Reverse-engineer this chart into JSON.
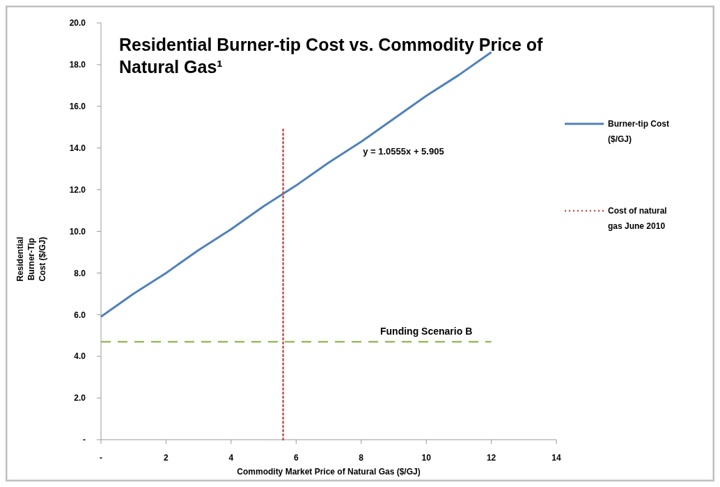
{
  "chart_data": {
    "type": "line",
    "title": "Residential Burner-tip Cost vs. Commodity Price of Natural Gas¹",
    "xlabel": "Commodity Market Price of Natural Gas ($/GJ)",
    "ylabel": "Residential Burner-Tip Cost ($/GJ)",
    "xlim": [
      0,
      14
    ],
    "ylim": [
      0,
      20
    ],
    "xticks": [
      {
        "value": 0,
        "label": "-"
      },
      2,
      4,
      6,
      8,
      10,
      12,
      14
    ],
    "yticks": [
      {
        "value": 0,
        "label": "-"
      },
      {
        "value": 2,
        "label": "2.0"
      },
      {
        "value": 4,
        "label": "4.0"
      },
      {
        "value": 6,
        "label": "6.0"
      },
      {
        "value": 8,
        "label": "8.0"
      },
      {
        "value": 10,
        "label": "10.0"
      },
      {
        "value": 12,
        "label": "12.0"
      },
      {
        "value": 14,
        "label": "14.0"
      },
      {
        "value": 16,
        "label": "16.0"
      },
      {
        "value": 18,
        "label": "18.0"
      },
      {
        "value": 20,
        "label": "20.0"
      }
    ],
    "grid": false,
    "legend": "right",
    "series": [
      {
        "name": "Burner-tip Cost ($/GJ)",
        "color": "#4f81bd",
        "line_style": "solid",
        "x": [
          0,
          1,
          2,
          3,
          4,
          5,
          6,
          7,
          8,
          9,
          10,
          11,
          12
        ],
        "values": [
          5.9,
          7.0,
          8.0,
          9.1,
          10.1,
          11.2,
          12.2,
          13.3,
          14.3,
          15.4,
          16.5,
          17.5,
          18.6
        ]
      },
      {
        "name": "Cost of natural gas June 2010",
        "color": "#c0504d",
        "line_style": "dotted",
        "x": [
          5.6,
          5.6
        ],
        "values": [
          0,
          15
        ]
      },
      {
        "color": "#9bbb59",
        "line_style": "dashed",
        "x": [
          0,
          12
        ],
        "values": [
          4.7,
          4.7
        ]
      }
    ],
    "annotations": [
      "y = 1.0555x + 5.905",
      {
        "text": "Funding Scenario B",
        "x": 10,
        "y": 4.7
      }
    ]
  }
}
